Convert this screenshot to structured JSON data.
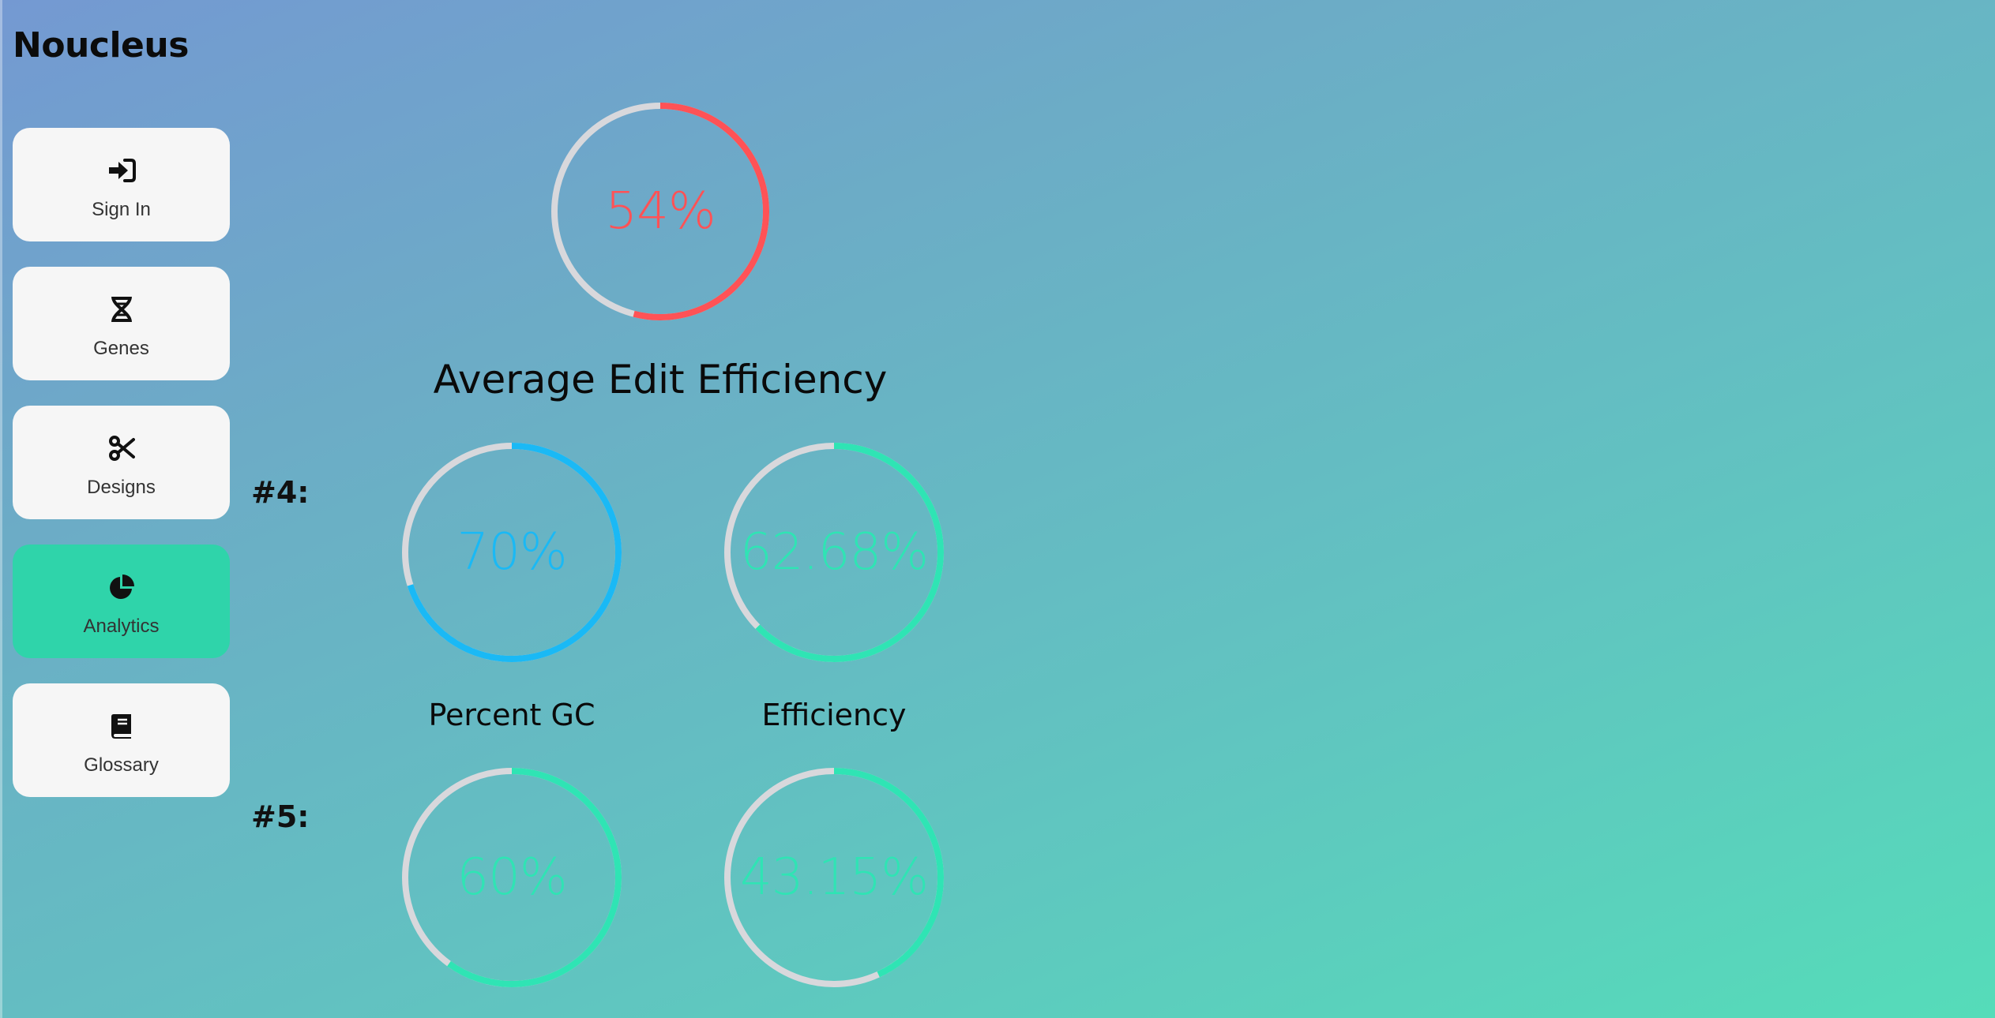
{
  "app": {
    "title": "Noucleus"
  },
  "sidebar": {
    "items": [
      {
        "label": "Sign In",
        "icon": "sign-in-icon",
        "active": false
      },
      {
        "label": "Genes",
        "icon": "dna-icon",
        "active": false
      },
      {
        "label": "Designs",
        "icon": "scissors-icon",
        "active": false
      },
      {
        "label": "Analytics",
        "icon": "pie-chart-icon",
        "active": true
      },
      {
        "label": "Glossary",
        "icon": "book-icon",
        "active": false
      }
    ]
  },
  "analytics": {
    "average": {
      "value_text": "54%",
      "value": 54,
      "label": "Average Edit Efficiency",
      "color": "#ff5256"
    },
    "rows": [
      {
        "rank": "#4:",
        "gc": {
          "value_text": "70%",
          "value": 70,
          "color": "#1ab9f5"
        },
        "efficiency": {
          "value_text": "62.68%",
          "value": 62.68,
          "color": "#2fe4b4"
        }
      },
      {
        "rank": "#5:",
        "gc": {
          "value_text": "60%",
          "value": 60,
          "color": "#2fe4b4"
        },
        "efficiency": {
          "value_text": "43.15%",
          "value": 43.15,
          "color": "#2fe4b4"
        }
      }
    ],
    "gc_label": "Percent GC",
    "efficiency_label": "Efficiency"
  },
  "colors": {
    "track": "#d8d8dc",
    "active_nav": "#2fd4aa"
  }
}
